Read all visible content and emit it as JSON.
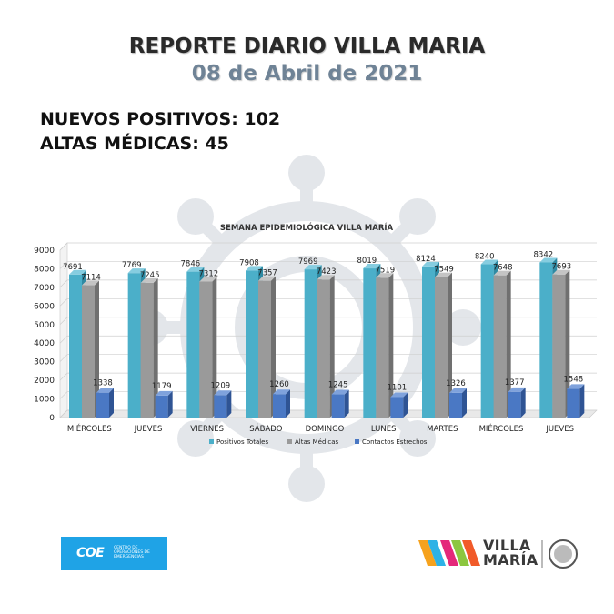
{
  "header": {
    "title": "REPORTE DIARIO VILLA MARIA",
    "date": "08 de Abril de 2021"
  },
  "stats": {
    "new_positives": "NUEVOS POSITIVOS: 102",
    "discharges": "ALTAS MÉDICAS: 45"
  },
  "logos": {
    "coe_abbr": "COE",
    "coe_full": "CENTRO DE OPERACIONES DE EMERGENCIAS",
    "city_line1": "VILLA",
    "city_line2": "MARÍA"
  },
  "colors": {
    "positivos": "#4bafc9",
    "altas": "#9a9a9a",
    "contactos": "#4a78c4",
    "title": "#2a2a2a",
    "date": "#6f8396"
  },
  "chart_data": {
    "type": "bar",
    "title": "SEMANA EPIDEMIOLÓGICA VILLA MARÍA",
    "categories": [
      "MIÉRCOLES",
      "JUEVES",
      "VIERNES",
      "SÁBADO",
      "DOMINGO",
      "LUNES",
      "MARTES",
      "MIÉRCOLES",
      "JUEVES"
    ],
    "series": [
      {
        "name": "Positivos Totales",
        "values": [
          7691,
          7769,
          7846,
          7908,
          7969,
          8019,
          8124,
          8240,
          8342
        ]
      },
      {
        "name": "Altas Médicas",
        "values": [
          7114,
          7245,
          7312,
          7357,
          7423,
          7519,
          7549,
          7648,
          7693
        ]
      },
      {
        "name": "Contactos Estrechos",
        "values": [
          1338,
          1179,
          1209,
          1260,
          1245,
          1101,
          1326,
          1377,
          1548
        ]
      }
    ],
    "yticks": [
      "9000",
      "8000",
      "7000",
      "6000",
      "5000",
      "4000",
      "3000",
      "2000",
      "1000",
      "0"
    ],
    "ylim": [
      0,
      9000
    ],
    "legend_position": "bottom",
    "grid": true
  }
}
